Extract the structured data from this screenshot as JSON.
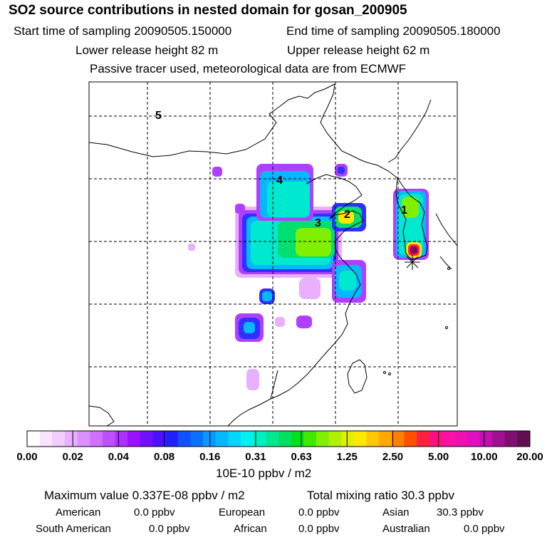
{
  "header": {
    "title": "SO2 source contributions in nested domain for gosan_200905",
    "start": "Start time of sampling 20090505.150000",
    "end": "End time of sampling 20090505.180000",
    "lower": "Lower release height   82 m",
    "upper": "Upper release height   62 m",
    "passive": "Passive tracer used, meteorological data are from ECMWF"
  },
  "chart_data": {
    "type": "heatmap",
    "title": "SO2 source contributions in nested domain for gosan_200905",
    "colorbar": {
      "ticks": [
        "0.00",
        "0.02",
        "0.04",
        "0.08",
        "0.16",
        "0.31",
        "0.63",
        "1.25",
        "2.50",
        "5.00",
        "10.00",
        "20.00"
      ],
      "units": "10E-10 ppbv / m2",
      "colors": [
        "#ffffff",
        "#f8e4ff",
        "#f0ccff",
        "#e8b0ff",
        "#dc90ff",
        "#cf70ff",
        "#bf50ff",
        "#ad30ff",
        "#9a10ff",
        "#7010ff",
        "#4a10ff",
        "#2020ff",
        "#1050ff",
        "#0a70ff",
        "#0898ff",
        "#06b8ff",
        "#00d8ff",
        "#00f0f0",
        "#00f0c0",
        "#00e890",
        "#00e060",
        "#00e020",
        "#40e800",
        "#80f000",
        "#b0f000",
        "#e0f000",
        "#ffe800",
        "#ffc800",
        "#ffa800",
        "#ff8000",
        "#ff5000",
        "#ff2040",
        "#ff1080",
        "#ff10a0",
        "#f010b0",
        "#e010c0",
        "#c010b0",
        "#a01090",
        "#801070",
        "#601050"
      ]
    },
    "source_labels": [
      "1",
      "2",
      "3",
      "4",
      "5"
    ],
    "summary": {
      "max_value": "Maximum value  0.337E-08 ppbv / m2",
      "total_mixing": "Total mixing ratio      30.3 ppbv"
    },
    "regions": [
      {
        "name": "American",
        "value": "0.0 ppbv"
      },
      {
        "name": "European",
        "value": "0.0 ppbv"
      },
      {
        "name": "Asian",
        "value": "30.3 ppbv"
      },
      {
        "name": "South American",
        "value": "0.0 ppbv"
      },
      {
        "name": "African",
        "value": "0.0 ppbv"
      },
      {
        "name": "Australian",
        "value": "0.0 ppbv"
      }
    ]
  }
}
